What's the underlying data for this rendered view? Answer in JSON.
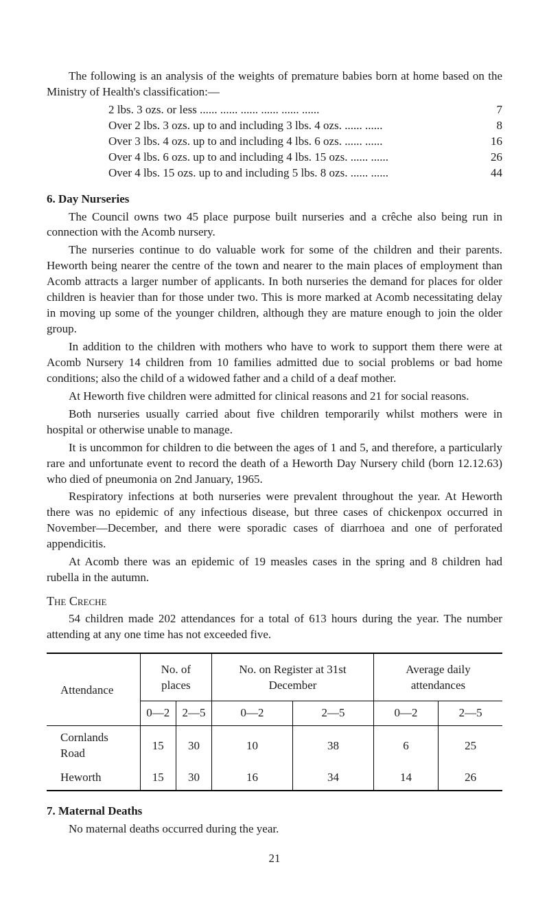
{
  "intro": "The following is an analysis of the weights of premature babies born at home based on the Ministry of Health's classification:—",
  "weights": [
    {
      "label": "2 lbs. 3 ozs. or less     ......     ......     ......     ......     ......     ......",
      "value": "7"
    },
    {
      "label": "Over 2 lbs. 3 ozs. up to and including 3 lbs. 4 ozs.  ......     ......",
      "value": "8"
    },
    {
      "label": "Over 3 lbs. 4 ozs. up to and including 4 lbs. 6 ozs.  ......     ......",
      "value": "16"
    },
    {
      "label": "Over 4 lbs. 6 ozs. up to and including 4 lbs. 15 ozs. ......     ......",
      "value": "26"
    },
    {
      "label": "Over 4 lbs. 15 ozs. up to and including 5 lbs. 8 ozs. ......     ......",
      "value": "44"
    }
  ],
  "section6": {
    "heading": "6.  Day Nurseries",
    "p1": "The Council owns two 45 place purpose built nurseries and a crêche also being run in connection with the Acomb nursery.",
    "p2": "The nurseries continue to do valuable work for some of the children and their parents. Heworth being nearer the centre of the town and nearer to the main places of employment than Acomb attracts a larger number of applicants. In both nurseries the demand for places for older children is heavier than for those under two. This is more marked at Acomb necessitating delay in moving up some of the younger children, although they are mature enough to join the older group.",
    "p3": "In addition to the children with mothers who have to work to support them there were at Acomb Nursery 14 children from 10 families admitted due to social problems or bad home conditions; also the child of a widowed father and a child of a deaf mother.",
    "p4": "At Heworth five children were admitted for clinical reasons and 21 for social reasons.",
    "p5": "Both nurseries usually carried about five children temporarily whilst mothers were in hospital or otherwise unable to manage.",
    "p6": "It is uncommon for children to die between the ages of 1 and 5, and therefore, a particularly rare and unfortunate event to record the death of a Heworth Day Nursery child (born 12.12.63) who died of pneumonia on 2nd January, 1965.",
    "p7": "Respiratory infections at both nurseries were prevalent throughout the year. At Heworth there was no epidemic of any infectious disease, but three cases of chickenpox occurred in November—December, and there were sporadic cases of diarrhoea and one of perforated appendicitis.",
    "p8": "At Acomb there was an epidemic of 19 measles cases in the spring and 8 children had rubella in the autumn."
  },
  "creche": {
    "heading": "The Creche",
    "p1": "54 children made 202 attendances for a total of 613 hours during the year. The number attending at any one time has not exceeded five."
  },
  "table": {
    "headers": {
      "attendance": "Attendance",
      "places": "No. of places",
      "register": "No. on Register at 31st December",
      "daily": "Average daily attendances",
      "range1": "0—2",
      "range2": "2—5"
    },
    "rows": [
      {
        "name": "Cornlands Road",
        "places02": "15",
        "places25": "30",
        "reg02": "10",
        "reg25": "38",
        "avg02": "6",
        "avg25": "25"
      },
      {
        "name": "Heworth",
        "places02": "15",
        "places25": "30",
        "reg02": "16",
        "reg25": "34",
        "avg02": "14",
        "avg25": "26"
      }
    ]
  },
  "section7": {
    "heading": "7.  Maternal Deaths",
    "p1": "No maternal deaths occurred during the year."
  },
  "pageNumber": "21"
}
